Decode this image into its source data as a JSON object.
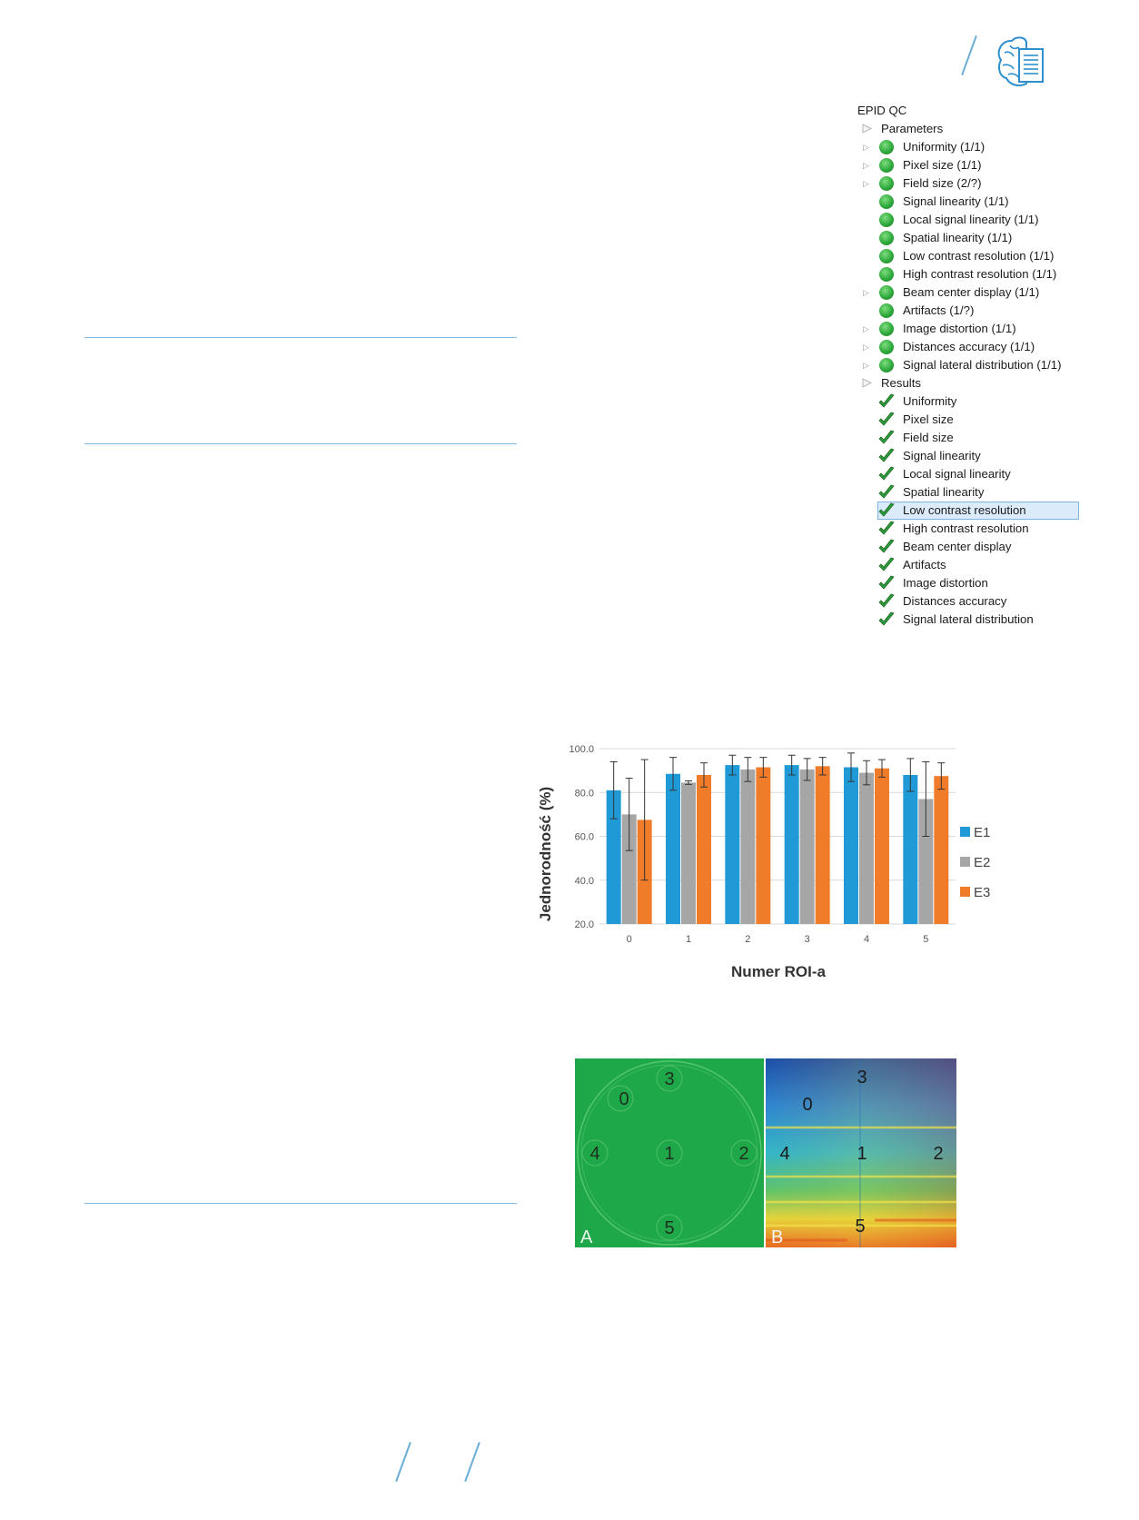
{
  "tree": {
    "root": "EPID QC",
    "parameters_label": "Parameters",
    "parameters": [
      {
        "label": "Uniformity (1/1)",
        "expandable": true
      },
      {
        "label": "Pixel size (1/1)",
        "expandable": true
      },
      {
        "label": "Field size (2/?)",
        "expandable": true
      },
      {
        "label": "Signal linearity (1/1)",
        "expandable": false
      },
      {
        "label": "Local signal linearity (1/1)",
        "expandable": false
      },
      {
        "label": "Spatial linearity (1/1)",
        "expandable": false
      },
      {
        "label": "Low contrast resolution (1/1)",
        "expandable": false
      },
      {
        "label": "High contrast resolution (1/1)",
        "expandable": false
      },
      {
        "label": "Beam center display (1/1)",
        "expandable": true
      },
      {
        "label": "Artifacts (1/?)",
        "expandable": false
      },
      {
        "label": "Image distortion (1/1)",
        "expandable": true
      },
      {
        "label": "Distances accuracy (1/1)",
        "expandable": true
      },
      {
        "label": "Signal lateral distribution (1/1)",
        "expandable": true
      }
    ],
    "results_label": "Results",
    "results": [
      "Uniformity",
      "Pixel size",
      "Field size",
      "Signal linearity",
      "Local signal linearity",
      "Spatial linearity",
      "Low contrast resolution",
      "High contrast resolution",
      "Beam center display",
      "Artifacts",
      "Image distortion",
      "Distances accuracy",
      "Signal lateral distribution"
    ],
    "selected_result": "Low contrast resolution"
  },
  "colors": {
    "E1": "#1f9ad6",
    "E2": "#a6a6a6",
    "E3": "#f07c2a",
    "accent_line": "#7fb8dd",
    "status_green": "#2faa3c"
  },
  "chart_data": {
    "type": "bar",
    "categories": [
      "0",
      "1",
      "2",
      "3",
      "4",
      "5"
    ],
    "series": [
      {
        "name": "E1",
        "values": [
          81.0,
          88.5,
          92.5,
          92.5,
          91.5,
          88.0
        ],
        "errors": [
          13.0,
          7.5,
          4.5,
          4.5,
          6.5,
          7.5
        ]
      },
      {
        "name": "E2",
        "values": [
          70.0,
          84.5,
          90.5,
          90.5,
          89.0,
          77.0
        ],
        "errors": [
          16.5,
          0.8,
          5.5,
          5.0,
          5.5,
          17.0
        ]
      },
      {
        "name": "E3",
        "values": [
          67.5,
          88.0,
          91.5,
          92.0,
          91.0,
          87.5
        ],
        "errors": [
          27.5,
          5.5,
          4.5,
          4.0,
          4.0,
          6.0
        ]
      }
    ],
    "title": "",
    "xlabel": "Numer ROI-a",
    "ylabel": "Jednorodność (%)",
    "ylim": [
      20,
      100
    ],
    "yticks": [
      "20.0",
      "40.0",
      "60.0",
      "80.0",
      "100.0"
    ],
    "grid": true,
    "legend_position": "right"
  },
  "roi_images": {
    "panel_a_label": "A",
    "panel_b_label": "B",
    "roi_labels": [
      "0",
      "1",
      "2",
      "3",
      "4",
      "5"
    ]
  }
}
